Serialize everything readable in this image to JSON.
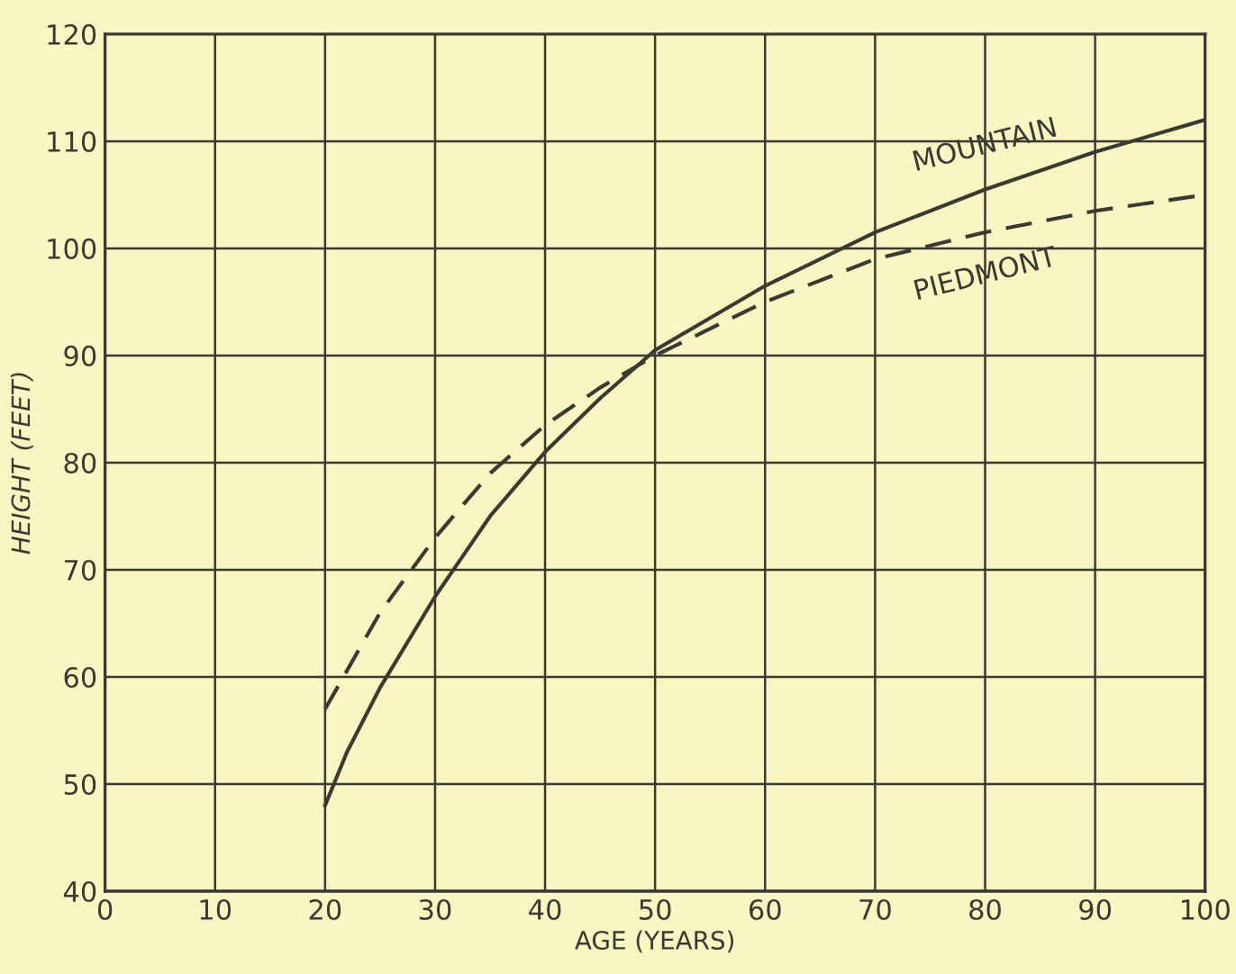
{
  "chart_data": {
    "type": "line",
    "xlabel": "AGE (YEARS)",
    "ylabel": "HEIGHT (FEET)",
    "xlim": [
      0,
      100
    ],
    "ylim": [
      40,
      120
    ],
    "xticks": [
      0,
      10,
      20,
      30,
      40,
      50,
      60,
      70,
      80,
      90,
      100
    ],
    "yticks": [
      40,
      50,
      60,
      70,
      80,
      90,
      100,
      110,
      120
    ],
    "grid": true,
    "series": [
      {
        "name": "MOUNTAIN",
        "color": "#3a3a30",
        "line_style": "solid",
        "x": [
          20,
          22,
          25,
          30,
          35,
          40,
          45,
          50,
          60,
          70,
          80,
          90,
          100
        ],
        "values": [
          48,
          53,
          59,
          67.5,
          75,
          81,
          86,
          90.5,
          96.5,
          101.5,
          105.5,
          109,
          112
        ]
      },
      {
        "name": "PIEDMONT",
        "color": "#3a3a30",
        "line_style": "dashed",
        "x": [
          20,
          25,
          30,
          35,
          40,
          45,
          50,
          60,
          70,
          80,
          90,
          100
        ],
        "values": [
          57,
          66,
          73,
          79,
          83.5,
          87,
          90,
          95,
          99,
          101.5,
          103.5,
          105
        ]
      }
    ]
  }
}
